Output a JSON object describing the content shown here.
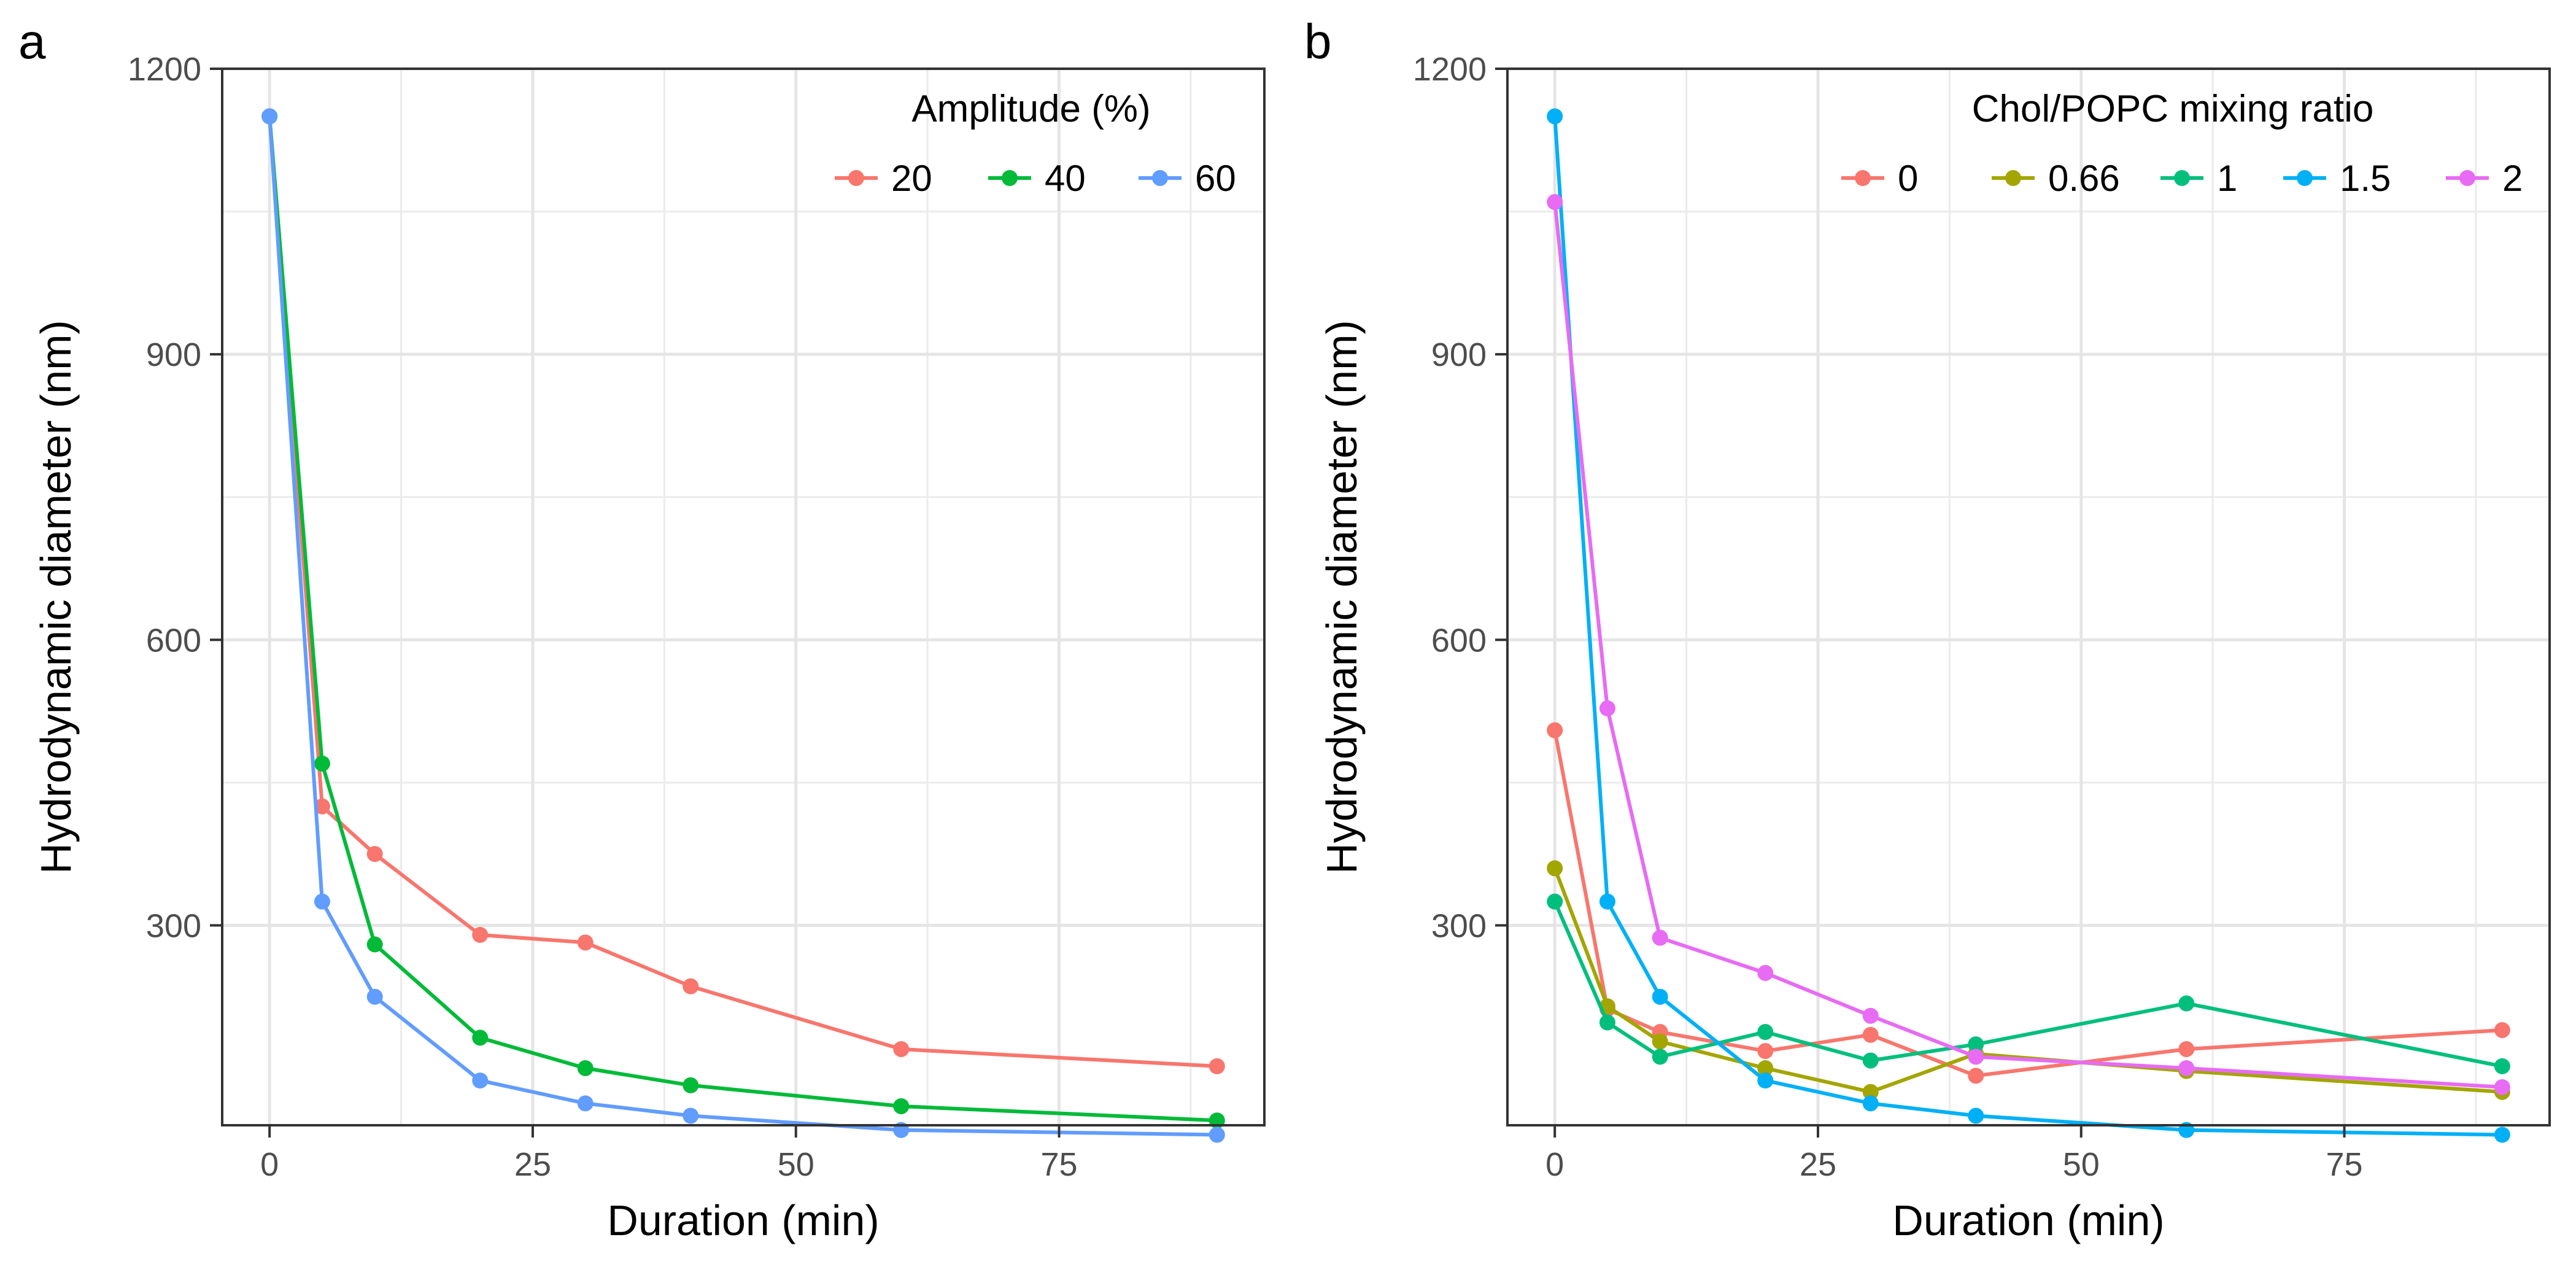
{
  "figure_labels": [
    "a",
    "b"
  ],
  "chart_data": [
    {
      "type": "line",
      "panel": "a",
      "xlabel": "Duration (min)",
      "ylabel": "Hydrodynamic diameter (nm)",
      "xlim": [
        -4.5,
        94.5
      ],
      "ylim": [
        90,
        1200
      ],
      "xticks": [
        0,
        25,
        50,
        75
      ],
      "yticks": [
        300,
        600,
        900,
        1200
      ],
      "grid": true,
      "legend_title": "Amplitude (%)",
      "legend_position": "top-right",
      "series": [
        {
          "name": "20",
          "color": "#F8766D",
          "x": [
            0,
            5,
            10,
            20,
            30,
            40,
            60,
            90
          ],
          "y": [
            1150,
            425,
            375,
            290,
            282,
            236,
            170,
            152
          ]
        },
        {
          "name": "40",
          "color": "#00BA38",
          "x": [
            0,
            5,
            10,
            20,
            30,
            40,
            60,
            90
          ],
          "y": [
            1150,
            470,
            280,
            182,
            150,
            132,
            110,
            95
          ]
        },
        {
          "name": "60",
          "color": "#619CFF",
          "x": [
            0,
            5,
            10,
            20,
            30,
            40,
            60,
            90
          ],
          "y": [
            1150,
            325,
            225,
            137,
            113,
            100,
            85,
            80
          ]
        }
      ]
    },
    {
      "type": "line",
      "panel": "b",
      "xlabel": "Duration (min)",
      "ylabel": "Hydrodynamic diameter (nm)",
      "xlim": [
        -4.5,
        94.5
      ],
      "ylim": [
        90,
        1200
      ],
      "xticks": [
        0,
        25,
        50,
        75
      ],
      "yticks": [
        300,
        600,
        900,
        1200
      ],
      "grid": true,
      "legend_title": "Chol/POPC mixing ratio",
      "legend_position": "top-right",
      "series": [
        {
          "name": "0",
          "color": "#F8766D",
          "x": [
            0,
            5,
            10,
            20,
            30,
            40,
            60,
            90
          ],
          "y": [
            505,
            212,
            188,
            168,
            185,
            142,
            170,
            190
          ]
        },
        {
          "name": "0.66",
          "color": "#A3A500",
          "x": [
            0,
            5,
            10,
            20,
            30,
            40,
            60,
            90
          ],
          "y": [
            360,
            215,
            178,
            150,
            125,
            165,
            147,
            125
          ]
        },
        {
          "name": "1",
          "color": "#00BF7D",
          "x": [
            0,
            5,
            10,
            20,
            30,
            40,
            60,
            90
          ],
          "y": [
            325,
            198,
            162,
            188,
            158,
            175,
            218,
            152
          ]
        },
        {
          "name": "1.5",
          "color": "#00B0F6",
          "x": [
            0,
            5,
            10,
            20,
            30,
            40,
            60,
            90
          ],
          "y": [
            1150,
            325,
            225,
            137,
            113,
            100,
            85,
            80
          ]
        },
        {
          "name": "2",
          "color": "#E76BF3",
          "x": [
            0,
            5,
            10,
            20,
            30,
            40,
            60,
            90
          ],
          "y": [
            1060,
            528,
            287,
            250,
            205,
            162,
            150,
            130
          ]
        }
      ]
    }
  ]
}
